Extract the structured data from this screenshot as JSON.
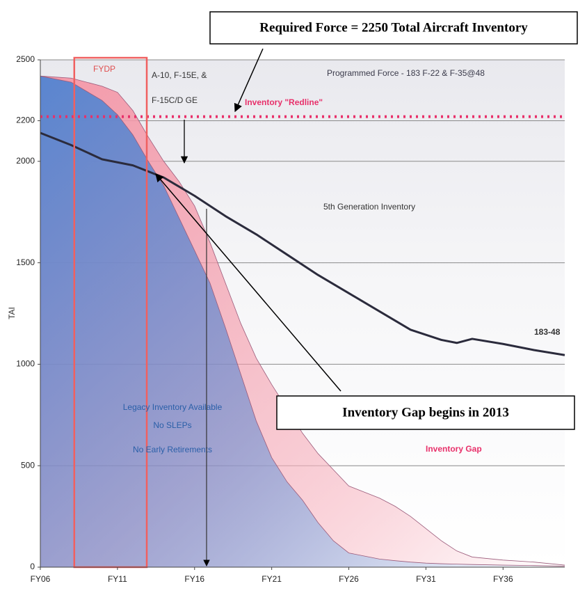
{
  "chart_data": {
    "type": "area",
    "ylabel": "TAI",
    "xlim": [
      2006,
      2040
    ],
    "ylim": [
      0,
      2500
    ],
    "xticks": [
      {
        "value": 2006,
        "label": "FY06"
      },
      {
        "value": 2011,
        "label": "FY11"
      },
      {
        "value": 2016,
        "label": "FY16"
      },
      {
        "value": 2021,
        "label": "FY21"
      },
      {
        "value": 2026,
        "label": "FY26"
      },
      {
        "value": 2031,
        "label": "FY31"
      },
      {
        "value": 2036,
        "label": "FY36"
      }
    ],
    "yticks": [
      0,
      500,
      1000,
      1500,
      2000,
      2200,
      2500
    ],
    "grid": true,
    "series": [
      {
        "color": "#f49aaa",
        "x": [
          2006,
          2008,
          2010,
          2011,
          2012,
          2013,
          2014,
          2015,
          2016,
          2017,
          2018,
          2019,
          2020,
          2021,
          2022,
          2023,
          2024,
          2025,
          2026,
          2027,
          2028,
          2029,
          2030,
          2031,
          2032,
          2033,
          2034,
          2036,
          2038,
          2040
        ],
        "values": [
          2420,
          2410,
          2370,
          2340,
          2250,
          2120,
          2000,
          1900,
          1780,
          1600,
          1400,
          1200,
          1030,
          900,
          780,
          660,
          560,
          480,
          400,
          370,
          340,
          300,
          250,
          190,
          130,
          80,
          50,
          35,
          25,
          10
        ]
      },
      {
        "color": "#5a86d0",
        "x": [
          2006,
          2008,
          2010,
          2011,
          2012,
          2013,
          2014,
          2015,
          2016,
          2017,
          2018,
          2019,
          2020,
          2021,
          2022,
          2023,
          2024,
          2025,
          2026,
          2027,
          2028,
          2029,
          2030,
          2031,
          2032,
          2033,
          2034,
          2036,
          2038,
          2040
        ],
        "values": [
          2420,
          2390,
          2300,
          2230,
          2130,
          2000,
          1880,
          1720,
          1560,
          1400,
          1180,
          950,
          720,
          540,
          420,
          330,
          220,
          130,
          70,
          55,
          40,
          32,
          25,
          20,
          17,
          15,
          13,
          10,
          8,
          5
        ]
      },
      {
        "type": "line",
        "color": "#2b2b3c",
        "x": [
          2006,
          2008,
          2010,
          2012,
          2014,
          2016,
          2018,
          2020,
          2022,
          2024,
          2026,
          2028,
          2030,
          2032,
          2033,
          2034,
          2036,
          2038,
          2040
        ],
        "values": [
          2140,
          2080,
          2010,
          1980,
          1920,
          1830,
          1730,
          1640,
          1540,
          1440,
          1350,
          1260,
          1170,
          1120,
          1105,
          1125,
          1100,
          1070,
          1045
        ]
      }
    ],
    "redline": 2220,
    "redline_color": "#e8306a",
    "fydp": {
      "label": "FYDP",
      "x": [
        2008.2,
        2012.9
      ],
      "color": "#f06060"
    },
    "annotations": {
      "required_force": "Required Force = 2250 Total Aircraft Inventory",
      "programmed_force": "Programmed Force - 183 F-22 & F-35@48",
      "redline_label": "Inventory \"Redline\"",
      "a10": [
        "A-10, F-15E, &",
        "F-15C/D GE"
      ],
      "fifth_gen": "5th Generation Inventory",
      "line_tag": "183-48",
      "legacy": [
        "Legacy Inventory Available",
        "No SLEPs",
        "No Early Retirements"
      ],
      "gap_begins": "Inventory Gap begins in 2013",
      "gap": "Inventory Gap"
    }
  }
}
